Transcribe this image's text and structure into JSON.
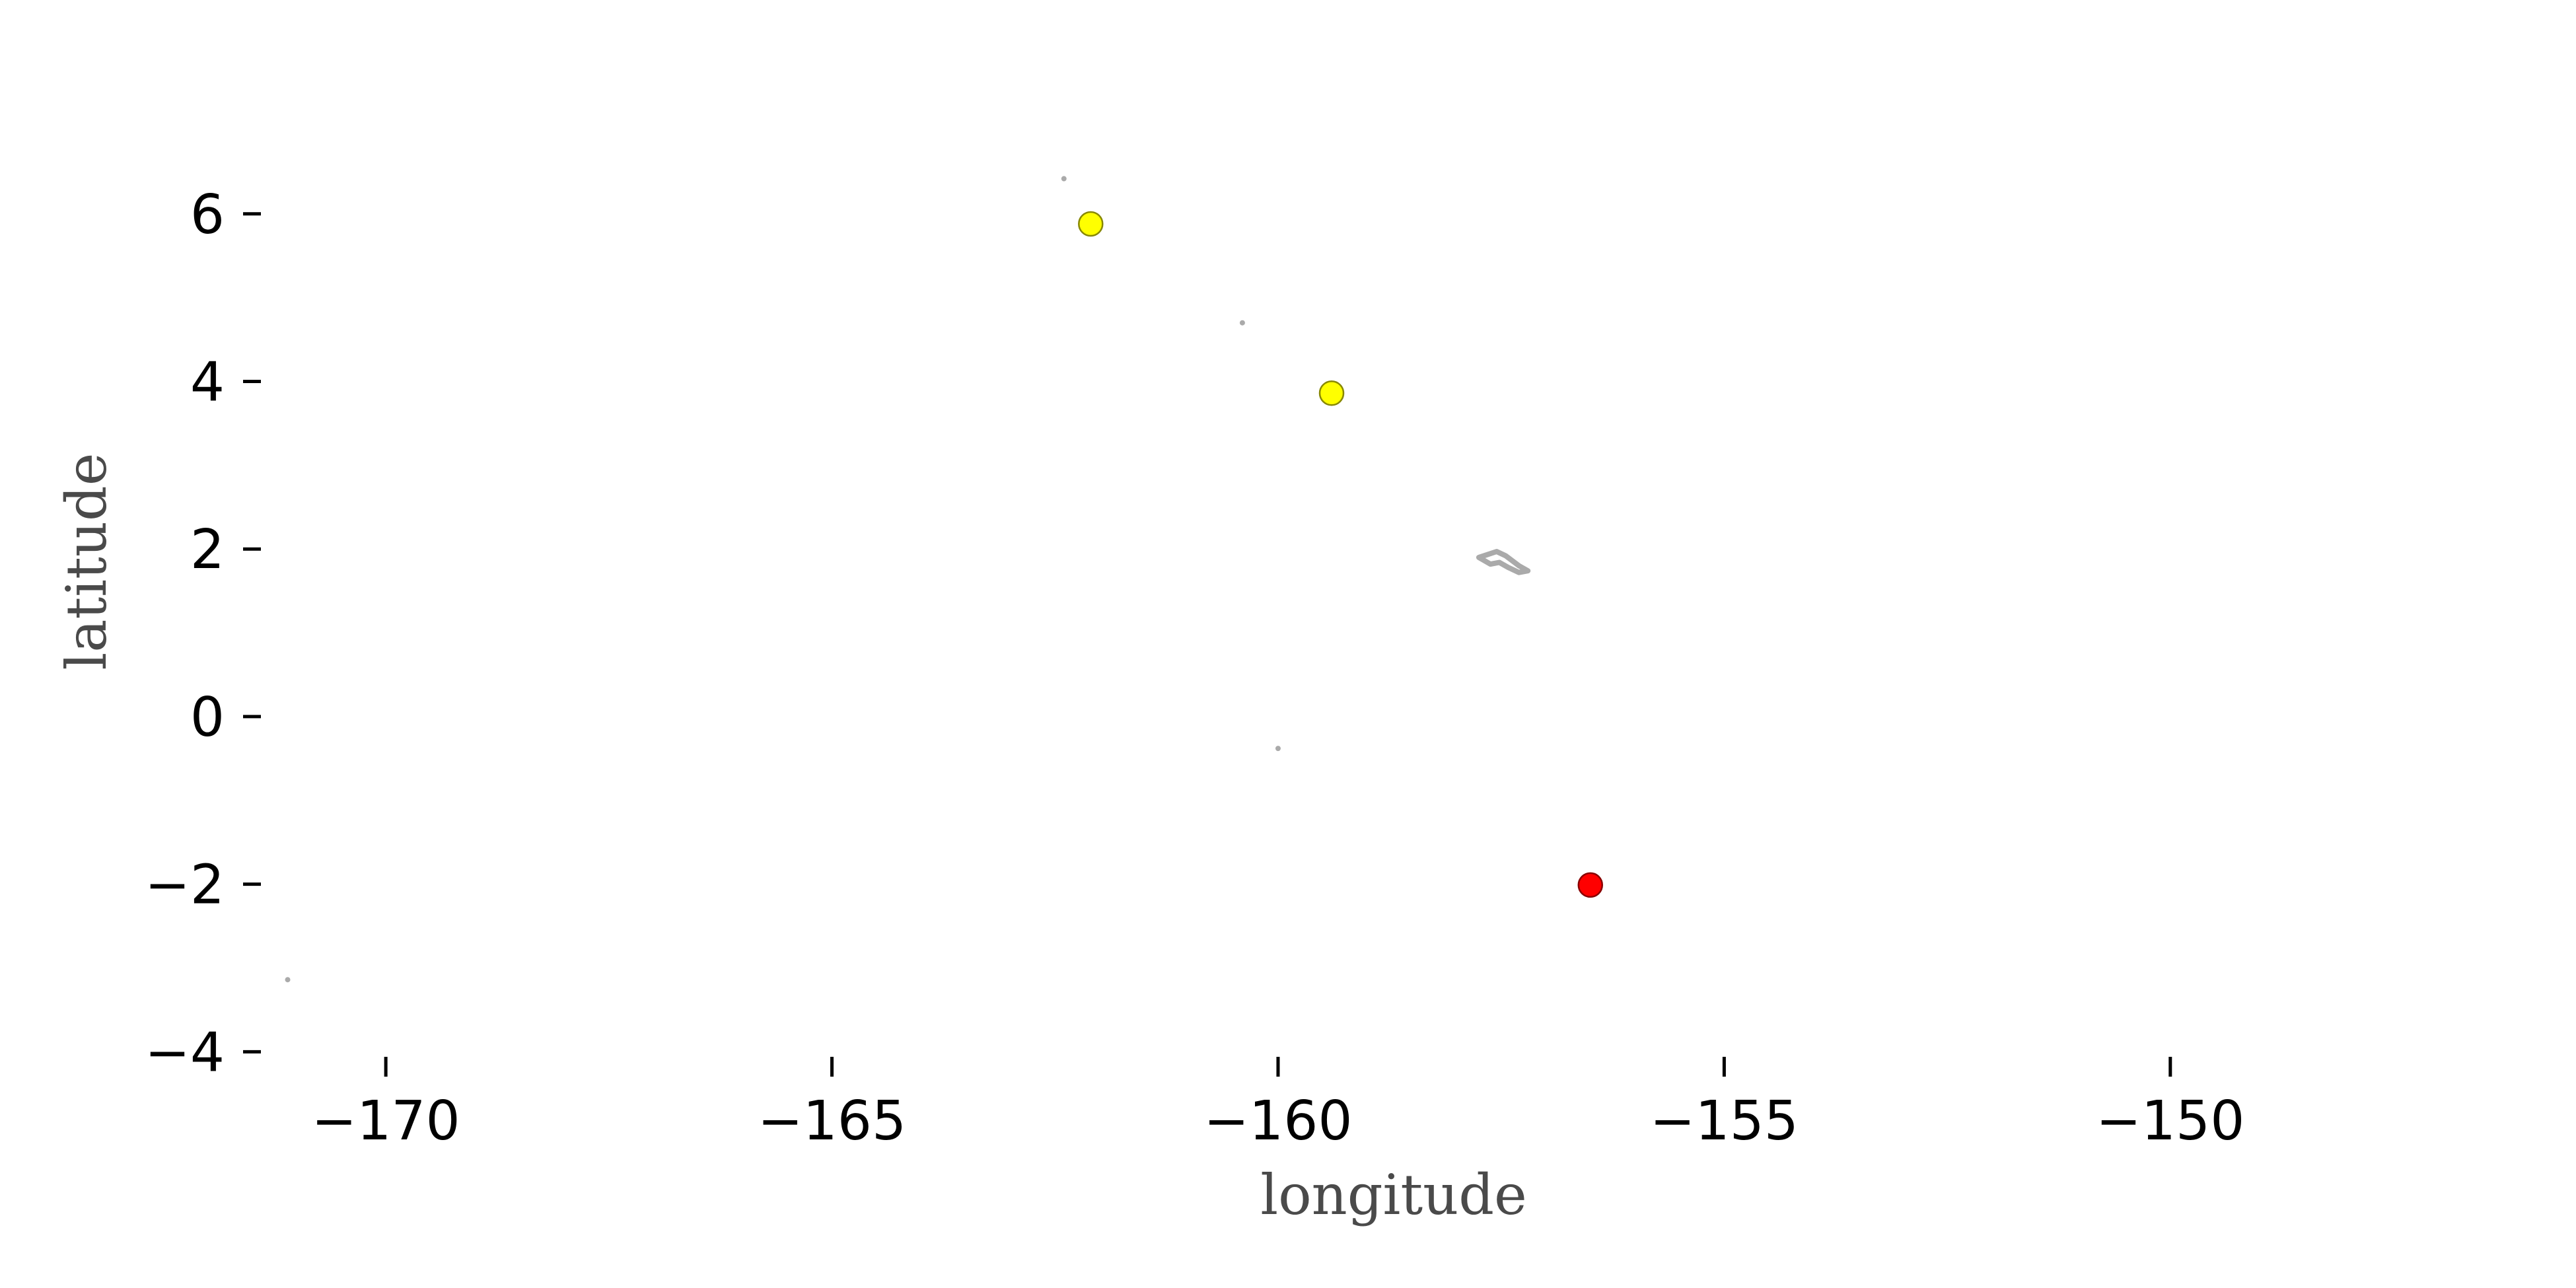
{
  "chart_data": {
    "type": "scatter",
    "title": "",
    "xlabel": "longitude",
    "ylabel": "latitude",
    "xlim": [
      -171.4,
      -147.6
    ],
    "ylim": [
      -4.1,
      6.7
    ],
    "grid": false,
    "x_ticks": [
      -170,
      -165,
      -160,
      -155,
      -150
    ],
    "x_tick_labels": [
      "−170",
      "−165",
      "−160",
      "−155",
      "−150"
    ],
    "y_ticks": [
      -4,
      -2,
      0,
      2,
      4,
      6
    ],
    "y_tick_labels": [
      "−4",
      "−2",
      "0",
      "2",
      "4",
      "6"
    ],
    "points": [
      {
        "x": -162.1,
        "y": 5.88,
        "color": "#ffff00"
      },
      {
        "x": -159.4,
        "y": 3.86,
        "color": "#ffff00"
      },
      {
        "x": -156.5,
        "y": -2.01,
        "color": "#ff0000"
      }
    ],
    "land": [
      {
        "x": -162.4,
        "y": 6.42
      },
      {
        "x": -160.4,
        "y": 4.7
      },
      {
        "x": -160.0,
        "y": -0.38
      },
      {
        "x": -171.1,
        "y": -3.14
      }
    ],
    "island_outline": [
      [
        -157.75,
        1.9
      ],
      [
        -157.55,
        1.97
      ],
      [
        -157.45,
        1.92
      ],
      [
        -157.3,
        1.8
      ],
      [
        -157.2,
        1.74
      ],
      [
        -157.3,
        1.72
      ],
      [
        -157.42,
        1.78
      ],
      [
        -157.52,
        1.84
      ],
      [
        -157.62,
        1.82
      ],
      [
        -157.75,
        1.9
      ]
    ],
    "colors": {
      "land": "#aaaaaa",
      "marker_edge": "#888800",
      "red_edge": "#880000"
    }
  }
}
